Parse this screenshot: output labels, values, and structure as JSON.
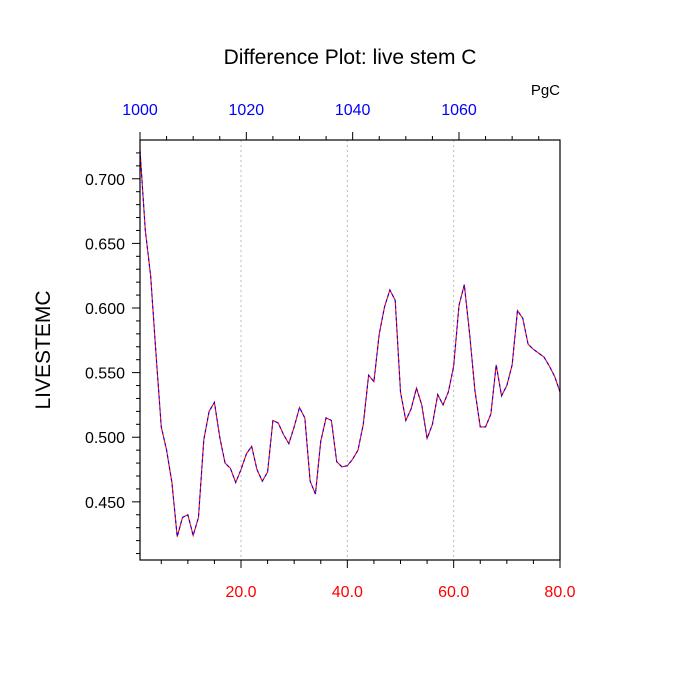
{
  "chart_data": {
    "type": "line",
    "title": "Difference Plot: live stem C",
    "units_label": "PgC",
    "ylabel": "LIVESTEMC",
    "xlim": [
      1,
      80
    ],
    "ylim": [
      0.405,
      0.73
    ],
    "grid": "vertical dotted at bottom x ticks",
    "bottom_axis": {
      "ticks": [
        20,
        40,
        60,
        80
      ],
      "labels": [
        "20.0",
        "40.0",
        "60.0",
        "80.0"
      ],
      "color": "#ff0000"
    },
    "top_axis": {
      "labels": [
        "1000",
        "1020",
        "1040",
        "1060"
      ],
      "color": "#0000ff"
    },
    "y_ticks": [
      0.45,
      0.5,
      0.55,
      0.6,
      0.65,
      0.7
    ],
    "y_tick_labels": [
      "0.450",
      "0.500",
      "0.550",
      "0.600",
      "0.650",
      "0.700"
    ],
    "series": [
      {
        "color": "#ff0000",
        "overlay_color": "#0000ff",
        "x": [
          1,
          2,
          3,
          4,
          5,
          6,
          7,
          8,
          9,
          10,
          11,
          12,
          13,
          14,
          15,
          16,
          17,
          18,
          19,
          20,
          21,
          22,
          23,
          24,
          25,
          26,
          27,
          28,
          29,
          30,
          31,
          32,
          33,
          34,
          35,
          36,
          37,
          38,
          39,
          40,
          41,
          42,
          43,
          44,
          45,
          46,
          47,
          48,
          49,
          50,
          51,
          52,
          53,
          54,
          55,
          56,
          57,
          58,
          59,
          60,
          61,
          62,
          63,
          64,
          65,
          66,
          67,
          68,
          69,
          70,
          71,
          72,
          73,
          74,
          75,
          76,
          77,
          78,
          79,
          80
        ],
        "values": [
          0.722,
          0.66,
          0.625,
          0.565,
          0.508,
          0.49,
          0.465,
          0.423,
          0.438,
          0.44,
          0.424,
          0.438,
          0.498,
          0.52,
          0.527,
          0.5,
          0.48,
          0.476,
          0.465,
          0.475,
          0.487,
          0.493,
          0.475,
          0.466,
          0.473,
          0.513,
          0.511,
          0.502,
          0.495,
          0.508,
          0.523,
          0.515,
          0.466,
          0.456,
          0.497,
          0.515,
          0.513,
          0.481,
          0.477,
          0.478,
          0.483,
          0.49,
          0.51,
          0.548,
          0.543,
          0.58,
          0.601,
          0.614,
          0.606,
          0.535,
          0.513,
          0.522,
          0.538,
          0.525,
          0.499,
          0.51,
          0.533,
          0.525,
          0.535,
          0.555,
          0.602,
          0.618,
          0.58,
          0.536,
          0.508,
          0.508,
          0.518,
          0.556,
          0.532,
          0.54,
          0.556,
          0.598,
          0.592,
          0.572,
          0.568,
          0.565,
          0.562,
          0.555,
          0.547,
          0.535
        ]
      }
    ]
  }
}
